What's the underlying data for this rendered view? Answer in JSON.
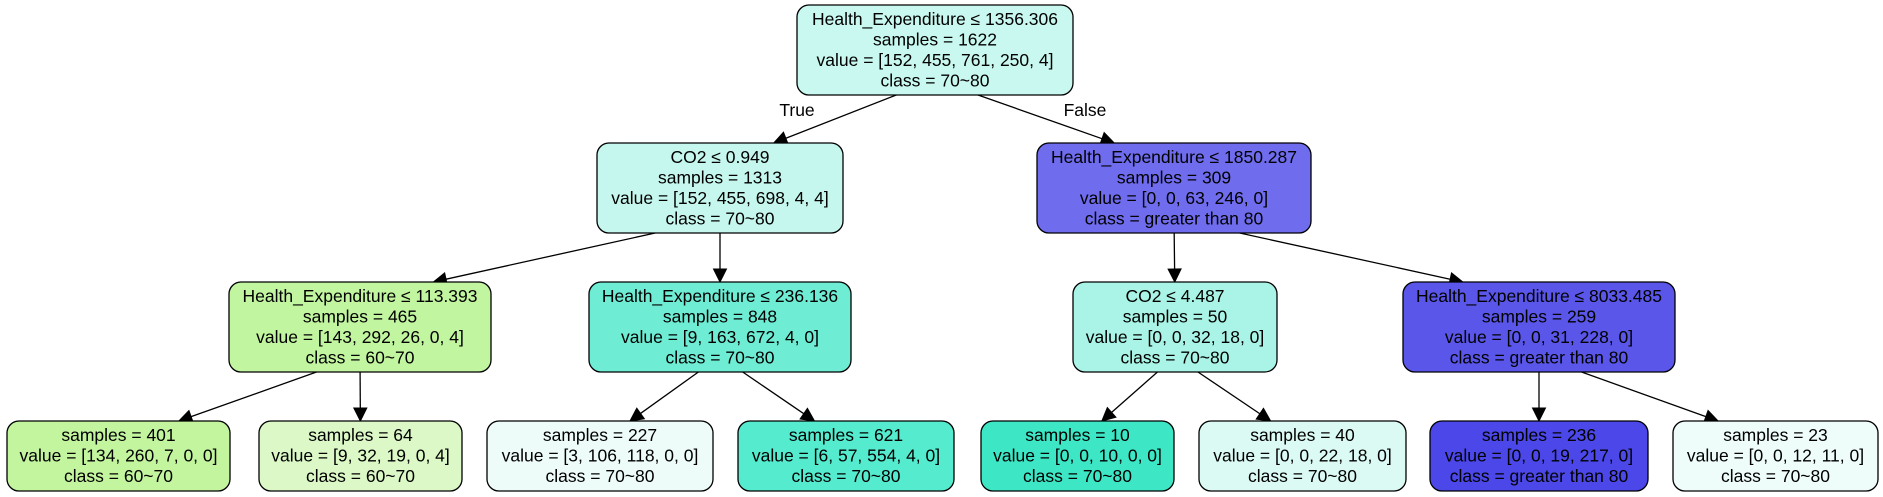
{
  "nodes": [
    {
      "id": "n0",
      "color": "#c8f8ef",
      "lines": [
        "Health_Expenditure ≤ 1356.306",
        "samples = 1622",
        "value = [152, 455, 761, 250, 4]",
        "class = 70~80"
      ]
    },
    {
      "id": "n1",
      "color": "#c6f7ee",
      "lines": [
        "CO2 ≤ 0.949",
        "samples = 1313",
        "value = [152, 455, 698, 4, 4]",
        "class = 70~80"
      ]
    },
    {
      "id": "n2",
      "color": "#6f6cee",
      "lines": [
        "Health_Expenditure ≤ 1850.287",
        "samples = 309",
        "value = [0, 0, 63, 246, 0]",
        "class = greater than 80"
      ]
    },
    {
      "id": "n3",
      "color": "#c2f5a0",
      "lines": [
        "Health_Expenditure ≤ 113.393",
        "samples = 465",
        "value = [143, 292, 26, 0, 4]",
        "class = 60~70"
      ]
    },
    {
      "id": "n4",
      "color": "#6eedd4",
      "lines": [
        "Health_Expenditure ≤ 236.136",
        "samples = 848",
        "value = [9, 163, 672, 4, 0]",
        "class = 70~80"
      ]
    },
    {
      "id": "n5",
      "color": "#a9f4e6",
      "lines": [
        "CO2 ≤ 4.487",
        "samples = 50",
        "value = [0, 0, 32, 18, 0]",
        "class = 70~80"
      ]
    },
    {
      "id": "n6",
      "color": "#5a56ea",
      "lines": [
        "Health_Expenditure ≤ 8033.485",
        "samples = 259",
        "value = [0, 0, 31, 228, 0]",
        "class = greater than 80"
      ]
    },
    {
      "id": "n7",
      "color": "#c2f59e",
      "lines": [
        "samples = 401",
        "value = [134, 260, 7, 0, 0]",
        "class = 60~70"
      ]
    },
    {
      "id": "n8",
      "color": "#dbf8c6",
      "lines": [
        "samples = 64",
        "value = [9, 32, 19, 0, 4]",
        "class = 60~70"
      ]
    },
    {
      "id": "n9",
      "color": "#edfcf9",
      "lines": [
        "samples = 227",
        "value = [3, 106, 118, 0, 0]",
        "class = 70~80"
      ]
    },
    {
      "id": "n10",
      "color": "#55ebce",
      "lines": [
        "samples = 621",
        "value = [6, 57, 554, 4, 0]",
        "class = 70~80"
      ]
    },
    {
      "id": "n11",
      "color": "#3de6c5",
      "lines": [
        "samples = 10",
        "value = [0, 0, 10, 0, 0]",
        "class = 70~80"
      ]
    },
    {
      "id": "n12",
      "color": "#dcfaf4",
      "lines": [
        "samples = 40",
        "value = [0, 0, 22, 18, 0]",
        "class = 70~80"
      ]
    },
    {
      "id": "n13",
      "color": "#4b47e8",
      "lines": [
        "samples = 236",
        "value = [0, 0, 19, 217, 0]",
        "class = greater than 80"
      ]
    },
    {
      "id": "n14",
      "color": "#eefdfa",
      "lines": [
        "samples = 23",
        "value = [0, 0, 12, 11, 0]",
        "class = 70~80"
      ]
    }
  ],
  "edges": [
    {
      "from": "n0",
      "to": "n1",
      "label": "True"
    },
    {
      "from": "n0",
      "to": "n2",
      "label": "False"
    },
    {
      "from": "n1",
      "to": "n3",
      "label": ""
    },
    {
      "from": "n1",
      "to": "n4",
      "label": ""
    },
    {
      "from": "n2",
      "to": "n5",
      "label": ""
    },
    {
      "from": "n2",
      "to": "n6",
      "label": ""
    },
    {
      "from": "n3",
      "to": "n7",
      "label": ""
    },
    {
      "from": "n3",
      "to": "n8",
      "label": ""
    },
    {
      "from": "n4",
      "to": "n9",
      "label": ""
    },
    {
      "from": "n4",
      "to": "n10",
      "label": ""
    },
    {
      "from": "n5",
      "to": "n11",
      "label": ""
    },
    {
      "from": "n5",
      "to": "n12",
      "label": ""
    },
    {
      "from": "n6",
      "to": "n13",
      "label": ""
    },
    {
      "from": "n6",
      "to": "n14",
      "label": ""
    }
  ]
}
